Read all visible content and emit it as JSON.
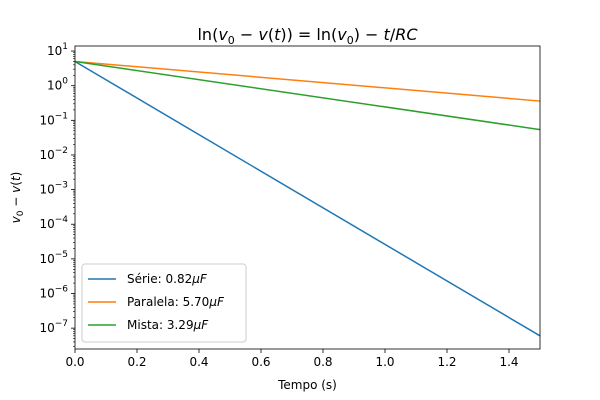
{
  "chart_data": {
    "type": "line",
    "title_parts": [
      "ln(",
      "v",
      "0",
      " − ",
      "v",
      "(",
      "t",
      ")) = ln(",
      "v",
      "0",
      ") − ",
      "t",
      "/",
      "RC"
    ],
    "xlabel": "Tempo (s)",
    "ylabel_parts": [
      "v",
      "0",
      " − ",
      "v",
      "(",
      "t",
      ")"
    ],
    "xlim": [
      0,
      1.5
    ],
    "yscale": "log",
    "ylim": [
      2.5e-08,
      14
    ],
    "x_ticks": [
      0.0,
      0.2,
      0.4,
      0.6,
      0.8,
      1.0,
      1.2,
      1.4
    ],
    "x_tick_labels": [
      "0.0",
      "0.2",
      "0.4",
      "0.6",
      "0.8",
      "1.0",
      "1.2",
      "1.4"
    ],
    "y_ticks": [
      {
        "value": 10.0,
        "base": "10",
        "exp": "1"
      },
      {
        "value": 1.0,
        "base": "10",
        "exp": "0"
      },
      {
        "value": 0.1,
        "base": "10",
        "exp": "−1"
      },
      {
        "value": 0.01,
        "base": "10",
        "exp": "−2"
      },
      {
        "value": 0.001,
        "base": "10",
        "exp": "−3"
      },
      {
        "value": 0.0001,
        "base": "10",
        "exp": "−4"
      },
      {
        "value": 1e-05,
        "base": "10",
        "exp": "−5"
      },
      {
        "value": 1e-06,
        "base": "10",
        "exp": "−6"
      },
      {
        "value": 1e-07,
        "base": "10",
        "exp": "−7"
      }
    ],
    "grid": false,
    "legend_position": "lower-left",
    "series": [
      {
        "legend_prefix": "Série: 0.82",
        "legend_unit": "μF",
        "color": "#1f77b4",
        "x": [
          0,
          1.5
        ],
        "y": [
          5,
          6e-08
        ]
      },
      {
        "legend_prefix": "Paralela: 5.70",
        "legend_unit": "μF",
        "color": "#ff7f0e",
        "x": [
          0,
          1.5
        ],
        "y": [
          5,
          0.36
        ]
      },
      {
        "legend_prefix": "Mista: 3.29",
        "legend_unit": "μF",
        "color": "#2ca02c",
        "x": [
          0,
          1.5
        ],
        "y": [
          5,
          0.054
        ]
      }
    ]
  }
}
